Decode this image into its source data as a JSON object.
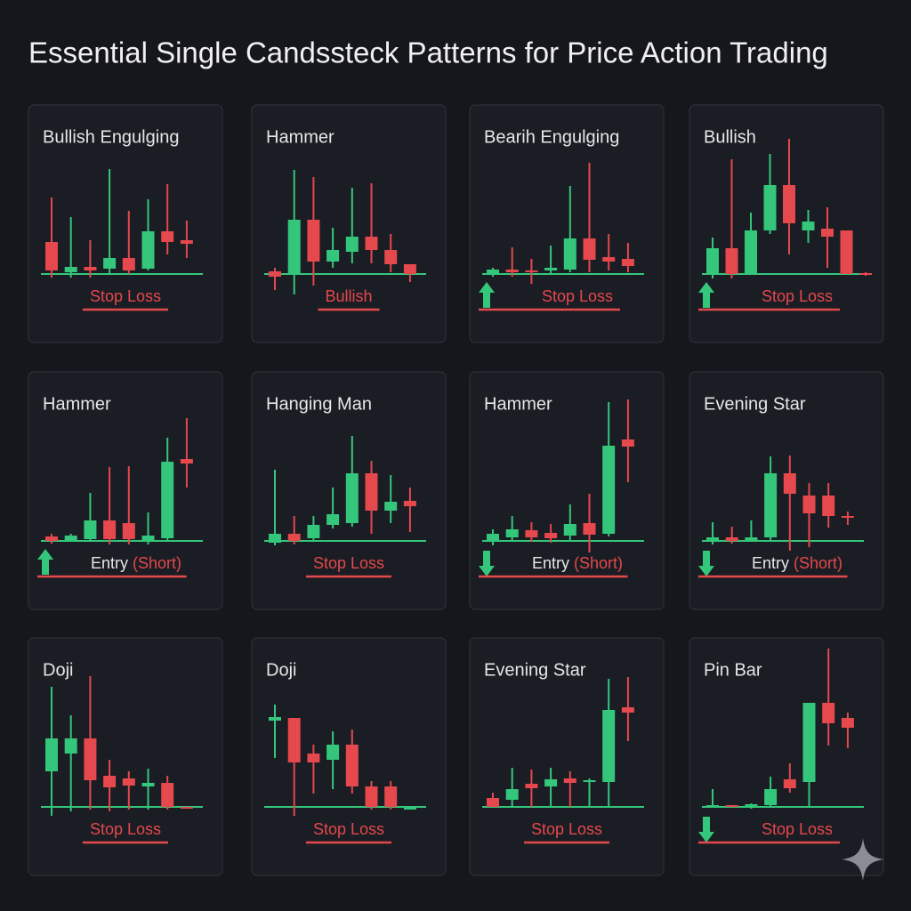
{
  "title": "Essential Single Candssteck Patterns for Price Action Trading",
  "colors": {
    "up": "#34c77b",
    "down": "#e5484d",
    "text": "#e6e6e6"
  },
  "chart_data": [
    {
      "type": "candlestick",
      "title": "Bullish Engulging",
      "ylim": [
        -40,
        185
      ],
      "open": [
        36,
        2,
        8,
        6,
        18,
        6,
        48,
        38
      ],
      "high": [
        86,
        64,
        38,
        118,
        71,
        84,
        101,
        60
      ],
      "low": [
        -4,
        -4,
        -4,
        0,
        0,
        4,
        22,
        18
      ],
      "close": [
        4,
        8,
        4,
        18,
        4,
        48,
        36,
        34
      ],
      "annotation": [
        {
          "text": "Stop Loss",
          "color": "#e5484d"
        }
      ]
    },
    {
      "type": "candlestick",
      "title": "Hammer",
      "ylim": [
        -40,
        185
      ],
      "open": [
        3,
        0,
        61,
        14,
        25,
        42,
        27,
        11
      ],
      "high": [
        7,
        117,
        109,
        52,
        97,
        102,
        45,
        11
      ],
      "low": [
        -18,
        -23,
        -13,
        7,
        12,
        12,
        2,
        -9
      ],
      "close": [
        -3,
        61,
        14,
        27,
        42,
        27,
        11,
        0
      ],
      "annotation": [
        {
          "text": "Bullish",
          "color": "#e5484d"
        }
      ]
    },
    {
      "type": "candlestick",
      "title": "Bearih Engulging",
      "ylim": [
        -40,
        185
      ],
      "open": [
        0,
        5,
        4,
        4,
        5,
        40,
        19,
        17
      ],
      "high": [
        7,
        30,
        17,
        32,
        99,
        125,
        45,
        35
      ],
      "low": [
        -3,
        -3,
        -11,
        -1,
        2,
        2,
        4,
        2
      ],
      "close": [
        5,
        2,
        2,
        7,
        40,
        16,
        14,
        9
      ],
      "arrow": "up",
      "annotation": [
        {
          "text": "Stop Loss",
          "color": "#e5484d"
        }
      ]
    },
    {
      "type": "candlestick",
      "title": "Bullish",
      "ylim": [
        -40,
        185
      ],
      "open": [
        0,
        29,
        0,
        49,
        100,
        49,
        51,
        49,
        1
      ],
      "high": [
        41,
        129,
        69,
        135,
        152,
        72,
        75,
        49,
        2
      ],
      "low": [
        -5,
        -5,
        0,
        45,
        22,
        35,
        7,
        0,
        -2
      ],
      "close": [
        29,
        0,
        49,
        100,
        57,
        59,
        42,
        0,
        -1
      ],
      "arrow": "up",
      "annotation": [
        {
          "text": "Stop Loss",
          "color": "#e5484d"
        }
      ]
    },
    {
      "type": "candlestick",
      "title": "Hammer",
      "ylim": [
        -40,
        185
      ],
      "open": [
        5,
        1,
        2,
        23,
        20,
        0,
        3,
        92
      ],
      "high": [
        8,
        8,
        54,
        83,
        84,
        32,
        116,
        138
      ],
      "low": [
        -3,
        0,
        0,
        -4,
        -4,
        -4,
        0,
        60
      ],
      "close": [
        0,
        6,
        23,
        2,
        2,
        6,
        89,
        87
      ],
      "arrow": "up",
      "annotation": [
        {
          "text": "Entry",
          "color": "#e6e6e6"
        },
        {
          "text": "(Short)",
          "color": "#e5484d"
        }
      ]
    },
    {
      "type": "candlestick",
      "title": "Hanging Man",
      "ylim": [
        -40,
        185
      ],
      "open": [
        -2,
        8,
        3,
        18,
        20,
        76,
        34,
        45
      ],
      "high": [
        80,
        28,
        28,
        60,
        118,
        90,
        74,
        60
      ],
      "low": [
        -5,
        -4,
        0,
        14,
        16,
        8,
        20,
        10
      ],
      "close": [
        8,
        0,
        18,
        30,
        76,
        34,
        44,
        39
      ],
      "annotation": [
        {
          "text": "Stop Loss",
          "color": "#e5484d"
        }
      ]
    },
    {
      "type": "candlestick",
      "title": "Hammer",
      "ylim": [
        -40,
        185
      ],
      "open": [
        0,
        4,
        12,
        9,
        6,
        20,
        8,
        114
      ],
      "high": [
        13,
        28,
        21,
        19,
        41,
        53,
        156,
        159
      ],
      "low": [
        -5,
        -1,
        -1,
        -2,
        1,
        -13,
        5,
        66
      ],
      "close": [
        8,
        13,
        4,
        3,
        19,
        7,
        107,
        106
      ],
      "arrow": "down",
      "annotation": [
        {
          "text": "Entry",
          "color": "#e6e6e6"
        },
        {
          "text": "(Short)",
          "color": "#e5484d"
        }
      ]
    },
    {
      "type": "candlestick",
      "title": "Evening Star",
      "ylim": [
        -40,
        185
      ],
      "open": [
        0,
        4,
        1,
        4,
        76,
        51,
        51,
        28
      ],
      "high": [
        21,
        16,
        23,
        95,
        96,
        65,
        65,
        33
      ],
      "low": [
        -4,
        -3,
        -1,
        1,
        -11,
        -7,
        15,
        18
      ],
      "close": [
        4,
        0,
        4,
        76,
        53,
        31,
        28,
        26
      ],
      "arrow": "down",
      "annotation": [
        {
          "text": "Entry",
          "color": "#e6e6e6"
        },
        {
          "text": "(Short)",
          "color": "#e5484d"
        }
      ]
    },
    {
      "type": "candlestick",
      "title": "Doji",
      "ylim": [
        -40,
        185
      ],
      "open": [
        40,
        60,
        77,
        35,
        32,
        23,
        27,
        0
      ],
      "high": [
        135,
        103,
        147,
        53,
        40,
        43,
        35,
        0
      ],
      "low": [
        -10,
        -5,
        -3,
        -5,
        -3,
        -3,
        -3,
        -2
      ],
      "close": [
        77,
        77,
        30,
        22,
        24,
        27,
        0,
        -2
      ],
      "annotation": [
        {
          "text": "Stop Loss",
          "color": "#e5484d"
        }
      ]
    },
    {
      "type": "candlestick",
      "title": "Doji",
      "ylim": [
        -40,
        185
      ],
      "open": [
        97,
        100,
        60,
        53,
        70,
        23,
        23,
        -3
      ],
      "high": [
        115,
        100,
        70,
        85,
        87,
        29,
        29,
        -1
      ],
      "low": [
        55,
        -10,
        15,
        20,
        15,
        -3,
        -3,
        -3
      ],
      "close": [
        101,
        50,
        50,
        70,
        23,
        0,
        0,
        -1
      ],
      "annotation": [
        {
          "text": "Stop Loss",
          "color": "#e5484d"
        }
      ]
    },
    {
      "type": "candlestick",
      "title": "Evening Star",
      "ylim": [
        -40,
        185
      ],
      "open": [
        10,
        8,
        26,
        23,
        32,
        28,
        28,
        112
      ],
      "high": [
        16,
        44,
        42,
        44,
        40,
        32,
        144,
        146
      ],
      "low": [
        0,
        0,
        0,
        0,
        0,
        0,
        0,
        74
      ],
      "close": [
        0,
        20,
        21,
        31,
        27,
        30,
        109,
        106
      ],
      "annotation": [
        {
          "text": "Stop Loss",
          "color": "#e5484d"
        }
      ]
    },
    {
      "type": "candlestick",
      "title": "Pin Bar",
      "ylim": [
        -40,
        185
      ],
      "open": [
        -1,
        2,
        0,
        2,
        31,
        28,
        117,
        100
      ],
      "high": [
        20,
        2,
        4,
        34,
        49,
        117,
        178,
        106
      ],
      "low": [
        -1,
        0,
        -2,
        0,
        16,
        0,
        69,
        66
      ],
      "close": [
        2,
        0,
        3,
        20,
        21,
        117,
        94,
        89
      ],
      "arrow": "down",
      "annotation": [
        {
          "text": "Stop Loss",
          "color": "#e5484d"
        }
      ]
    }
  ]
}
